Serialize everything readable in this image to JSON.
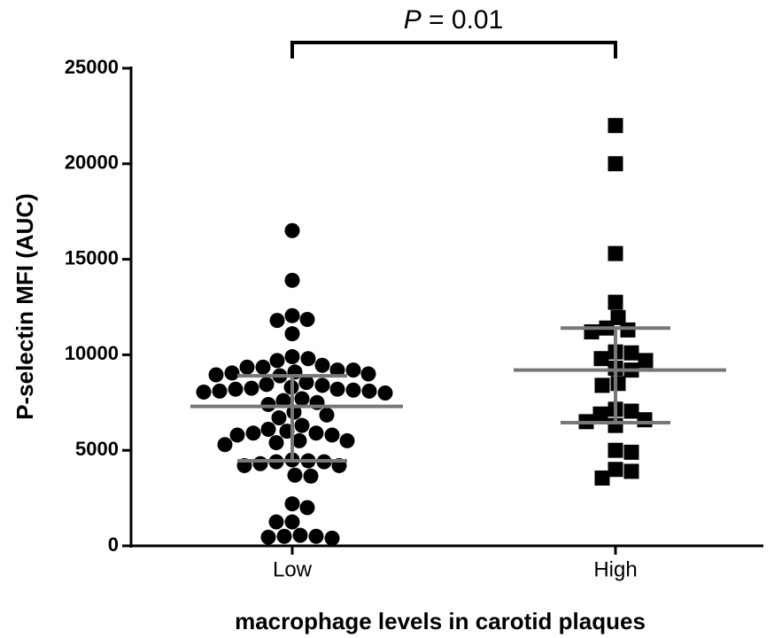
{
  "chart_data": {
    "type": "dotplot",
    "annotation": [
      "P",
      "= 0.01"
    ],
    "ylabel": "P-selectin MFI (AUC)",
    "xlabel": "macrophage levels in carotid plaques",
    "categories": [
      "Low",
      "High"
    ],
    "groups": [
      {
        "marker": "circle",
        "color": "#000000",
        "values": [
          16500,
          13900,
          12050,
          11850,
          11800,
          11100,
          9900,
          9700,
          9800,
          9450,
          9350,
          9200,
          9050,
          9000,
          8950,
          8900,
          9100,
          9200,
          9350,
          8400,
          8250,
          8200,
          8150,
          8100,
          8050,
          8000,
          8100,
          8200,
          8300,
          8450,
          8550,
          7500,
          7700,
          7600,
          7400,
          7000,
          6700,
          6850,
          6300,
          6100,
          5900,
          5800,
          5900,
          6000,
          5800,
          5500,
          5500,
          5300,
          5400,
          4500,
          4400,
          4300,
          4200,
          4200,
          4400,
          4450,
          3700,
          3650,
          2200,
          2000,
          1250,
          1250,
          500,
          400,
          450,
          500,
          550
        ],
        "center": 7300,
        "upper": 8900,
        "lower": 4450
      },
      {
        "marker": "square",
        "color": "#000000",
        "values": [
          22000,
          20000,
          15300,
          12750,
          11950,
          11400,
          11200,
          11300,
          10150,
          10100,
          9800,
          9700,
          9300,
          9200,
          8500,
          8400,
          7150,
          7050,
          6900,
          6600,
          6500,
          6300,
          5000,
          4900,
          4000,
          3900,
          3550
        ],
        "center": 9200,
        "upper": 11400,
        "lower": 6450
      }
    ],
    "summary_color": "#777777",
    "ylim": [
      0,
      25000
    ],
    "yticks": [
      0,
      5000,
      10000,
      15000,
      20000,
      25000
    ]
  }
}
